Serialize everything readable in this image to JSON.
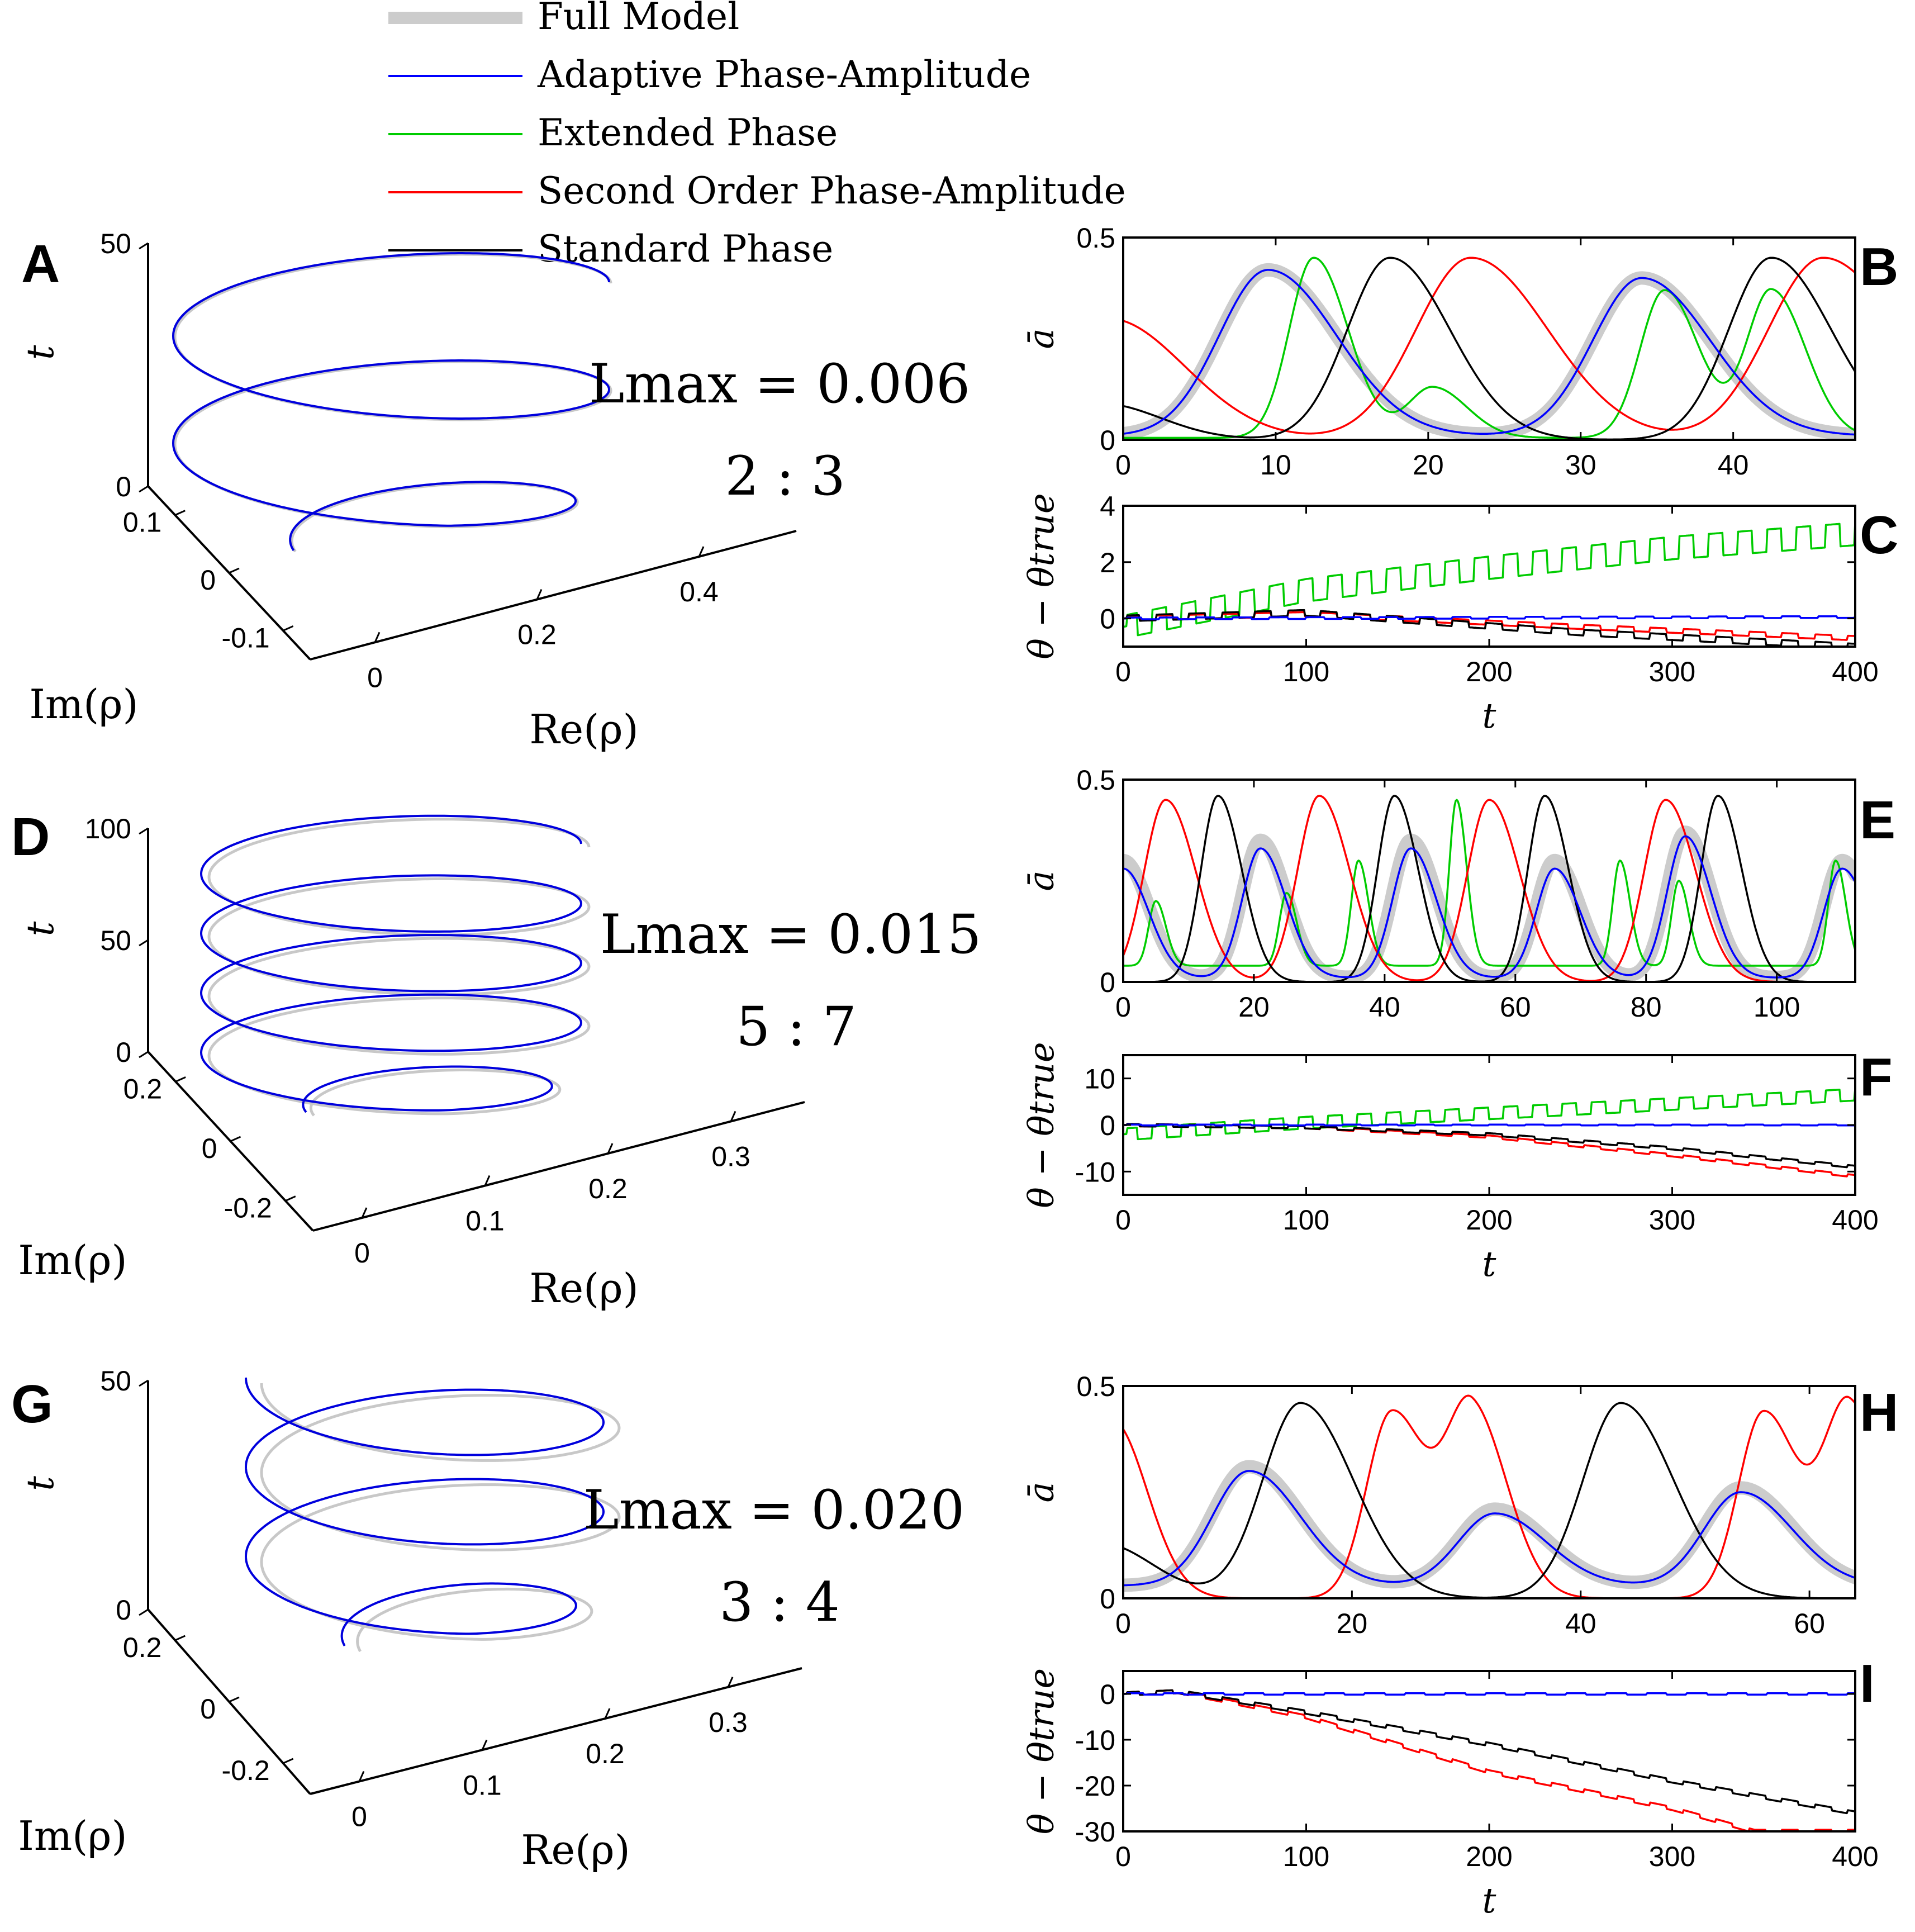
{
  "legend": [
    {
      "label": "Full Model",
      "color": "#cccccc"
    },
    {
      "label": "Adaptive Phase-Amplitude",
      "color": "#0000ff"
    },
    {
      "label": "Extended Phase",
      "color": "#00cc00"
    },
    {
      "label": "Second Order Phase-Amplitude",
      "color": "#ff0000"
    },
    {
      "label": "Standard Phase",
      "color": "#000000"
    }
  ],
  "chart_data": [
    {
      "panel": "A",
      "type": "line",
      "title": "3D helix",
      "annotation_lmax": "L_max = 0.006",
      "annotation_ratio": "2 : 3",
      "zlabel": "t",
      "xlabel": "Re(ρ)",
      "ylabel": "Im(ρ)",
      "ticks_t": [
        "0",
        "50"
      ],
      "ticks_re": [
        "0",
        "0.2",
        "0.4"
      ],
      "ticks_im": [
        "-0.1",
        "0",
        "0.1"
      ],
      "turns": 2.5,
      "t_max": 50
    },
    {
      "panel": "B",
      "type": "line",
      "ylabel": "ā",
      "xlabel": "",
      "xlim": [
        0,
        48
      ],
      "ylim": [
        0,
        0.5
      ],
      "xticks": [
        "0",
        "10",
        "20",
        "30",
        "40"
      ],
      "yticks": [
        "0",
        "0.5"
      ],
      "series": [
        {
          "name": "Full Model",
          "peaks": [
            [
              9.5,
              0.42
            ],
            [
              34,
              0.4
            ]
          ],
          "width": 3.2,
          "base": 0.01
        },
        {
          "name": "Adaptive Phase-Amplitude",
          "peaks": [
            [
              9.5,
              0.42
            ],
            [
              34,
              0.4
            ]
          ],
          "width": 3.2,
          "base": 0.01
        },
        {
          "name": "Extended Phase",
          "peaks": [
            [
              12.5,
              0.45
            ],
            [
              20.3,
              0.13
            ],
            [
              35.5,
              0.37
            ],
            [
              42.5,
              0.37
            ]
          ],
          "width": 1.6,
          "base": 0.005
        },
        {
          "name": "Second Order Phase-Amplitude",
          "peaks": [
            [
              -1,
              0.3
            ],
            [
              22.8,
              0.45
            ],
            [
              45.9,
              0.45
            ]
          ],
          "width": 3.6,
          "base": 0.0
        },
        {
          "name": "Standard Phase",
          "peaks": [
            [
              -1.5,
              0.09
            ],
            [
              17.5,
              0.45
            ],
            [
              42.5,
              0.45
            ]
          ],
          "width": 2.8,
          "base": 0.0
        }
      ]
    },
    {
      "panel": "C",
      "type": "line",
      "ylabel": "θ − θtrue",
      "xlabel": "t",
      "xlim": [
        0,
        400
      ],
      "ylim": [
        -1,
        4
      ],
      "xticks": [
        "0",
        "100",
        "200",
        "300",
        "400"
      ],
      "yticks": [
        "0",
        "2",
        "4"
      ],
      "series": [
        {
          "name": "Adaptive Phase-Amplitude",
          "trend": [
            [
              0,
              0
            ],
            [
              400,
              0.05
            ]
          ],
          "osc": 0.06,
          "period": 20
        },
        {
          "name": "Extended Phase",
          "trend": [
            [
              0,
              -0.3
            ],
            [
              100,
              1.0
            ],
            [
              200,
              1.8
            ],
            [
              300,
              2.5
            ],
            [
              400,
              3.0
            ]
          ],
          "osc": 0.8,
          "period": 16
        },
        {
          "name": "Second Order Phase-Amplitude",
          "trend": [
            [
              0,
              0
            ],
            [
              100,
              0.15
            ],
            [
              250,
              -0.3
            ],
            [
              400,
              -0.7
            ]
          ],
          "osc": 0.15,
          "period": 18
        },
        {
          "name": "Standard Phase",
          "trend": [
            [
              0,
              0
            ],
            [
              100,
              0.2
            ],
            [
              250,
              -0.5
            ],
            [
              400,
              -1.0
            ]
          ],
          "osc": 0.2,
          "period": 18
        }
      ]
    },
    {
      "panel": "D",
      "type": "line",
      "title": "3D helix",
      "annotation_lmax": "L_max = 0.015",
      "annotation_ratio": "5 : 7",
      "zlabel": "t",
      "xlabel": "Re(ρ)",
      "ylabel": "Im(ρ)",
      "ticks_t": [
        "0",
        "50",
        "100"
      ],
      "ticks_re": [
        "0",
        "0.1",
        "0.2",
        "0.3"
      ],
      "ticks_im": [
        "-0.2",
        "0",
        "0.2"
      ],
      "turns": 4.5,
      "t_max": 100
    },
    {
      "panel": "E",
      "type": "line",
      "ylabel": "ā",
      "xlabel": "",
      "xlim": [
        0,
        112
      ],
      "ylim": [
        0,
        0.5
      ],
      "xticks": [
        "0",
        "20",
        "40",
        "60",
        "80",
        "100"
      ],
      "yticks": [
        "0",
        "0.5"
      ],
      "series": [
        {
          "name": "Full Model",
          "peaks": [
            [
              0,
              0.3
            ],
            [
              21,
              0.35
            ],
            [
              44,
              0.35
            ],
            [
              66,
              0.3
            ],
            [
              86,
              0.37
            ],
            [
              110,
              0.3
            ]
          ],
          "width": 2.8,
          "base": 0.01
        },
        {
          "name": "Adaptive Phase-Amplitude",
          "peaks": [
            [
              0,
              0.28
            ],
            [
              21,
              0.33
            ],
            [
              44,
              0.33
            ],
            [
              66,
              0.28
            ],
            [
              86,
              0.36
            ],
            [
              110,
              0.28
            ]
          ],
          "width": 2.8,
          "base": 0.01
        },
        {
          "name": "Extended Phase",
          "peaks": [
            [
              5,
              0.2
            ],
            [
              25,
              0.22
            ],
            [
              36,
              0.3
            ],
            [
              51,
              0.45
            ],
            [
              76,
              0.3
            ],
            [
              85,
              0.25
            ],
            [
              109,
              0.3
            ]
          ],
          "width": 1.1,
          "base": 0.04
        },
        {
          "name": "Second Order Phase-Amplitude",
          "peaks": [
            [
              6.5,
              0.45
            ],
            [
              30,
              0.46
            ],
            [
              56,
              0.45
            ],
            [
              83,
              0.45
            ]
          ],
          "width": 3.3,
          "base": 0.0
        },
        {
          "name": "Standard Phase",
          "peaks": [
            [
              14.5,
              0.46
            ],
            [
              41.5,
              0.46
            ],
            [
              64.5,
              0.46
            ],
            [
              91,
              0.46
            ]
          ],
          "width": 2.6,
          "base": 0.0
        }
      ]
    },
    {
      "panel": "F",
      "type": "line",
      "ylabel": "θ − θtrue",
      "xlabel": "t",
      "xlim": [
        0,
        400
      ],
      "ylim": [
        -15,
        15
      ],
      "xticks": [
        "0",
        "100",
        "200",
        "300",
        "400"
      ],
      "yticks": [
        "-10",
        "0",
        "10"
      ],
      "series": [
        {
          "name": "Adaptive Phase-Amplitude",
          "trend": [
            [
              0,
              0
            ],
            [
              400,
              0
            ]
          ],
          "osc": 0.2,
          "period": 20
        },
        {
          "name": "Extended Phase",
          "trend": [
            [
              0,
              -2
            ],
            [
              100,
              0.5
            ],
            [
              200,
              2.5
            ],
            [
              300,
              4.5
            ],
            [
              400,
              6.5
            ]
          ],
          "osc": 2.5,
          "period": 16
        },
        {
          "name": "Second Order Phase-Amplitude",
          "trend": [
            [
              0,
              0
            ],
            [
              100,
              -0.5
            ],
            [
              200,
              -2.5
            ],
            [
              300,
              -6.5
            ],
            [
              400,
              -11
            ]
          ],
          "osc": 0.5,
          "period": 18
        },
        {
          "name": "Standard Phase",
          "trend": [
            [
              0,
              0
            ],
            [
              100,
              -0.5
            ],
            [
              200,
              -2
            ],
            [
              300,
              -5
            ],
            [
              400,
              -9
            ]
          ],
          "osc": 0.5,
          "period": 18
        }
      ]
    },
    {
      "panel": "G",
      "type": "line",
      "title": "3D helix",
      "annotation_lmax": "L_max = 0.020",
      "annotation_ratio": "3 : 4",
      "zlabel": "t",
      "xlabel": "Re(ρ)",
      "ylabel": "Im(ρ)",
      "ticks_t": [
        "0",
        "50"
      ],
      "ticks_re": [
        "0",
        "0.1",
        "0.2",
        "0.3"
      ],
      "ticks_im": [
        "-0.2",
        "0",
        "0.2"
      ],
      "turns": 3.0,
      "t_max": 60
    },
    {
      "panel": "H",
      "type": "line",
      "ylabel": "ā",
      "xlabel": "",
      "xlim": [
        0,
        64
      ],
      "ylim": [
        0,
        0.5
      ],
      "xticks": [
        "0",
        "20",
        "40",
        "60"
      ],
      "yticks": [
        "0",
        "0.5"
      ],
      "series": [
        {
          "name": "Full Model",
          "peaks": [
            [
              11,
              0.31
            ],
            [
              32.5,
              0.21
            ],
            [
              54,
              0.26
            ]
          ],
          "width": 3.2,
          "base": 0.03
        },
        {
          "name": "Adaptive Phase-Amplitude",
          "peaks": [
            [
              11,
              0.3
            ],
            [
              32.5,
              0.2
            ],
            [
              54,
              0.25
            ]
          ],
          "width": 3.2,
          "base": 0.03
        },
        {
          "name": "Second Order Phase-Amplitude",
          "peaks": [
            [
              -1,
              0.42
            ],
            [
              23.5,
              0.44
            ],
            [
              30.5,
              0.44
            ],
            [
              56,
              0.44
            ],
            [
              63.5,
              0.45
            ]
          ],
          "width": 2.2,
          "base": 0.0
        },
        {
          "name": "Standard Phase",
          "peaks": [
            [
              -2,
              0.13
            ],
            [
              15.5,
              0.46
            ],
            [
              43.5,
              0.46
            ]
          ],
          "width": 3.3,
          "base": 0.0
        }
      ]
    },
    {
      "panel": "I",
      "type": "line",
      "ylabel": "θ − θtrue",
      "xlabel": "t",
      "xlim": [
        0,
        400
      ],
      "ylim": [
        -30,
        5
      ],
      "xticks": [
        "0",
        "100",
        "200",
        "300",
        "400"
      ],
      "yticks": [
        "-30",
        "-20",
        "-10",
        "0"
      ],
      "series": [
        {
          "name": "Adaptive Phase-Amplitude",
          "trend": [
            [
              0,
              0
            ],
            [
              400,
              0
            ]
          ],
          "osc": 0.3,
          "period": 22
        },
        {
          "name": "Second Order Phase-Amplitude",
          "trend": [
            [
              0,
              0
            ],
            [
              30,
              0.5
            ],
            [
              100,
              -5
            ],
            [
              200,
              -17
            ],
            [
              300,
              -25
            ],
            [
              345,
              -30
            ]
          ],
          "osc": 0.7,
          "period": 18
        },
        {
          "name": "Standard Phase",
          "trend": [
            [
              0,
              0
            ],
            [
              30,
              0.5
            ],
            [
              100,
              -4
            ],
            [
              200,
              -11
            ],
            [
              300,
              -19
            ],
            [
              400,
              -26
            ]
          ],
          "osc": 0.7,
          "period": 18
        }
      ]
    }
  ]
}
